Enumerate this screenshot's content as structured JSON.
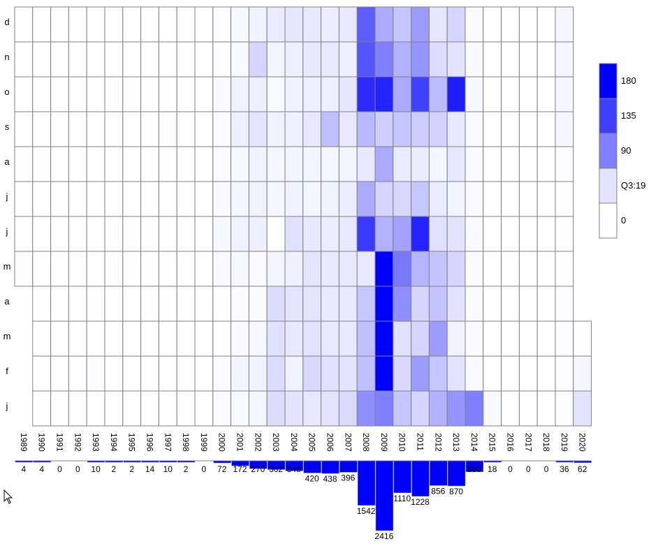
{
  "chart_data": {
    "type": "heatmap",
    "title": "",
    "xlabel": "",
    "ylabel": "",
    "x": [
      "1989",
      "1990",
      "1991",
      "1992",
      "1993",
      "1994",
      "1995",
      "1996",
      "1997",
      "1998",
      "1999",
      "2000",
      "2001",
      "2002",
      "2003",
      "2004",
      "2005",
      "2006",
      "2007",
      "2008",
      "2009",
      "2010",
      "2011",
      "2012",
      "2013",
      "2014",
      "2015",
      "2016",
      "2017",
      "2018",
      "2019",
      "2020"
    ],
    "y": [
      "d",
      "n",
      "o",
      "s",
      "a",
      "j",
      "j",
      "m",
      "a",
      "m",
      "f",
      "j"
    ],
    "values": [
      [
        0,
        0,
        0,
        0,
        0,
        0,
        0,
        0,
        0,
        0,
        0,
        2,
        6,
        10,
        14,
        18,
        16,
        13,
        16,
        115,
        60,
        40,
        70,
        18,
        30,
        3,
        0,
        0,
        0,
        0,
        7,
        null
      ],
      [
        0,
        0,
        0,
        0,
        0,
        0,
        0,
        0,
        0,
        0,
        0,
        2,
        5,
        30,
        8,
        12,
        16,
        16,
        11,
        120,
        90,
        55,
        75,
        25,
        20,
        4,
        0,
        0,
        0,
        0,
        7,
        null
      ],
      [
        0,
        0,
        0,
        0,
        0,
        1,
        1,
        1,
        1,
        0,
        0,
        4,
        9,
        12,
        5,
        10,
        12,
        12,
        18,
        150,
        155,
        60,
        135,
        48,
        160,
        6,
        0,
        0,
        0,
        0,
        7,
        null
      ],
      [
        0,
        0,
        0,
        0,
        0,
        0,
        0,
        1,
        2,
        0,
        0,
        3,
        12,
        19,
        9,
        11,
        17,
        45,
        17,
        50,
        34,
        40,
        36,
        32,
        16,
        4,
        0,
        0,
        0,
        0,
        7,
        null
      ],
      [
        1,
        1,
        0,
        0,
        0,
        0,
        0,
        1,
        1,
        0,
        0,
        3,
        6,
        10,
        7,
        8,
        8,
        7,
        8,
        16,
        60,
        14,
        14,
        7,
        17,
        4,
        0,
        0,
        0,
        0,
        2,
        null
      ],
      [
        0,
        0,
        0,
        0,
        0,
        0,
        0,
        0,
        0,
        0,
        0,
        4,
        7,
        9,
        7,
        10,
        7,
        10,
        13,
        60,
        30,
        28,
        40,
        14,
        8,
        4,
        0,
        0,
        0,
        0,
        1,
        null
      ],
      [
        0,
        0,
        0,
        0,
        0,
        1,
        1,
        1,
        1,
        0,
        0,
        6,
        10,
        12,
        0,
        22,
        16,
        13,
        16,
        140,
        55,
        65,
        155,
        22,
        20,
        4,
        0,
        0,
        0,
        0,
        1,
        null
      ],
      [
        2,
        0,
        0,
        0,
        0,
        1,
        1,
        1,
        1,
        0,
        0,
        4,
        6,
        4,
        8,
        11,
        19,
        15,
        16,
        16,
        210,
        95,
        52,
        42,
        30,
        3,
        0,
        0,
        0,
        0,
        1,
        null
      ],
      [
        null,
        0,
        0,
        0,
        1,
        0,
        0,
        1,
        1,
        0,
        0,
        0,
        3,
        3,
        25,
        19,
        19,
        15,
        15,
        40,
        230,
        80,
        30,
        42,
        20,
        3,
        0,
        0,
        0,
        0,
        2,
        null
      ],
      [
        null,
        0,
        0,
        0,
        0,
        0,
        0,
        0,
        0,
        0,
        0,
        1,
        4,
        6,
        22,
        17,
        20,
        16,
        16,
        45,
        230,
        22,
        30,
        70,
        10,
        3,
        0,
        0,
        0,
        0,
        2,
        1
      ],
      [
        null,
        0,
        0,
        0,
        2,
        0,
        0,
        0,
        0,
        0,
        0,
        3,
        8,
        9,
        25,
        10,
        27,
        22,
        20,
        45,
        240,
        27,
        70,
        40,
        20,
        4,
        0,
        0,
        0,
        0,
        2,
        7
      ],
      [
        null,
        0,
        0,
        0,
        0,
        0,
        0,
        0,
        0,
        0,
        0,
        3,
        5,
        7,
        25,
        20,
        17,
        20,
        26,
        80,
        90,
        40,
        30,
        55,
        75,
        90,
        5,
        0,
        0,
        0,
        2,
        20
      ]
    ],
    "col_totals": [
      4,
      4,
      0,
      0,
      10,
      2,
      2,
      14,
      10,
      2,
      0,
      72,
      172,
      270,
      302,
      348,
      420,
      438,
      396,
      1542,
      2416,
      1110,
      1228,
      856,
      870,
      380,
      18,
      0,
      0,
      0,
      36,
      62
    ],
    "legend": {
      "labels": [
        "180",
        "135",
        "90",
        "Q3:19",
        "0"
      ],
      "colors": [
        "#0000ff",
        "#3f3fff",
        "#8080ff",
        "#e3e3ff",
        "#ffffff"
      ]
    },
    "color_scale": {
      "low": "#ffffff",
      "high": "#0000ff",
      "max": 180
    },
    "colors": {
      "grid": "#808080",
      "bar": "#0000ff"
    }
  }
}
